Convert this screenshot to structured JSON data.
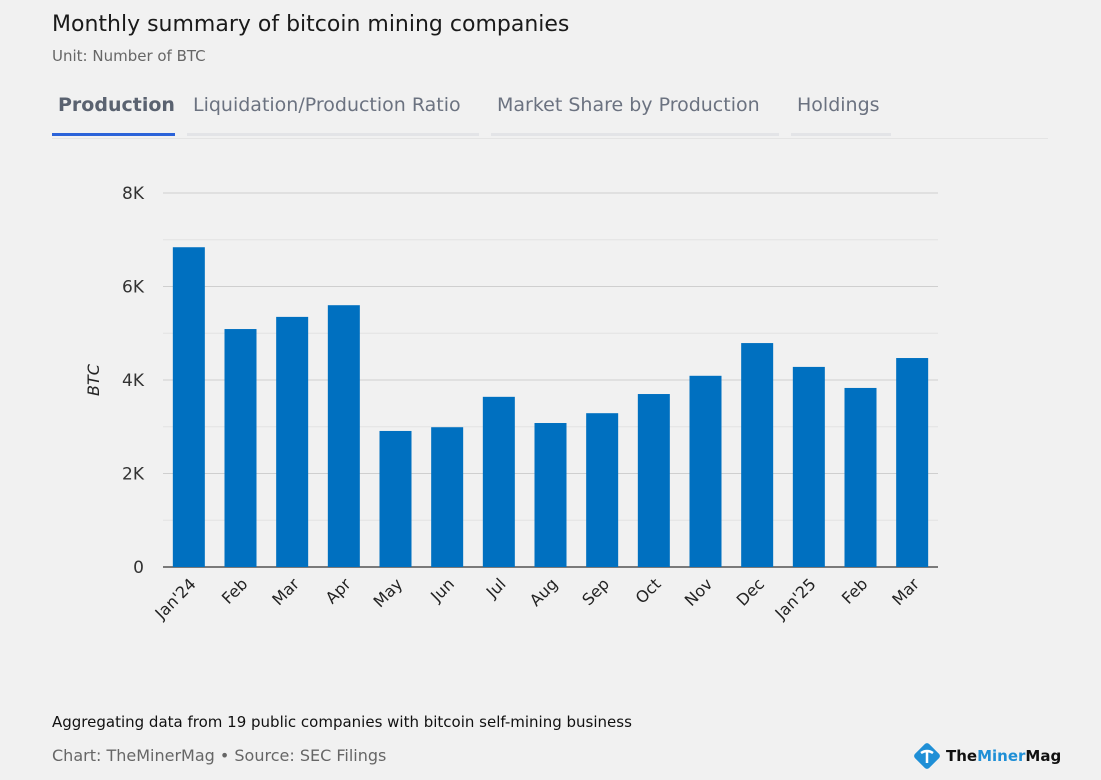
{
  "header": {
    "title": "Monthly summary of bitcoin mining companies",
    "subtitle": "Unit: Number of BTC"
  },
  "tabs": [
    {
      "label": "Production",
      "active": true
    },
    {
      "label": "Liquidation/Production Ratio"
    },
    {
      "label": "Market Share by Production"
    },
    {
      "label": "Holdings"
    }
  ],
  "chart_data": {
    "type": "bar",
    "categories": [
      "Jan'24",
      "Feb",
      "Mar",
      "Apr",
      "May",
      "Jun",
      "Jul",
      "Aug",
      "Sep",
      "Oct",
      "Nov",
      "Dec",
      "Jan'25",
      "Feb",
      "Mar"
    ],
    "values": [
      6840,
      5090,
      5350,
      5600,
      2910,
      2990,
      3640,
      3080,
      3290,
      3700,
      4090,
      4790,
      4280,
      3830,
      4470
    ],
    "ylabel": "BTC",
    "ylim": [
      0,
      8000
    ],
    "yticks": [
      {
        "v": 0,
        "label": "0"
      },
      {
        "v": 2000,
        "label": "2K"
      },
      {
        "v": 4000,
        "label": "4K"
      },
      {
        "v": 6000,
        "label": "6K"
      },
      {
        "v": 8000,
        "label": "8K"
      }
    ],
    "grid": true,
    "color": "#0070c0"
  },
  "footer": {
    "note": "Aggregating data from 19 public companies with bitcoin self-mining business",
    "source": "Chart: TheMinerMag • Source: SEC Filings"
  },
  "logo": {
    "part1": "The",
    "part2": "Miner",
    "part3": "Mag"
  }
}
